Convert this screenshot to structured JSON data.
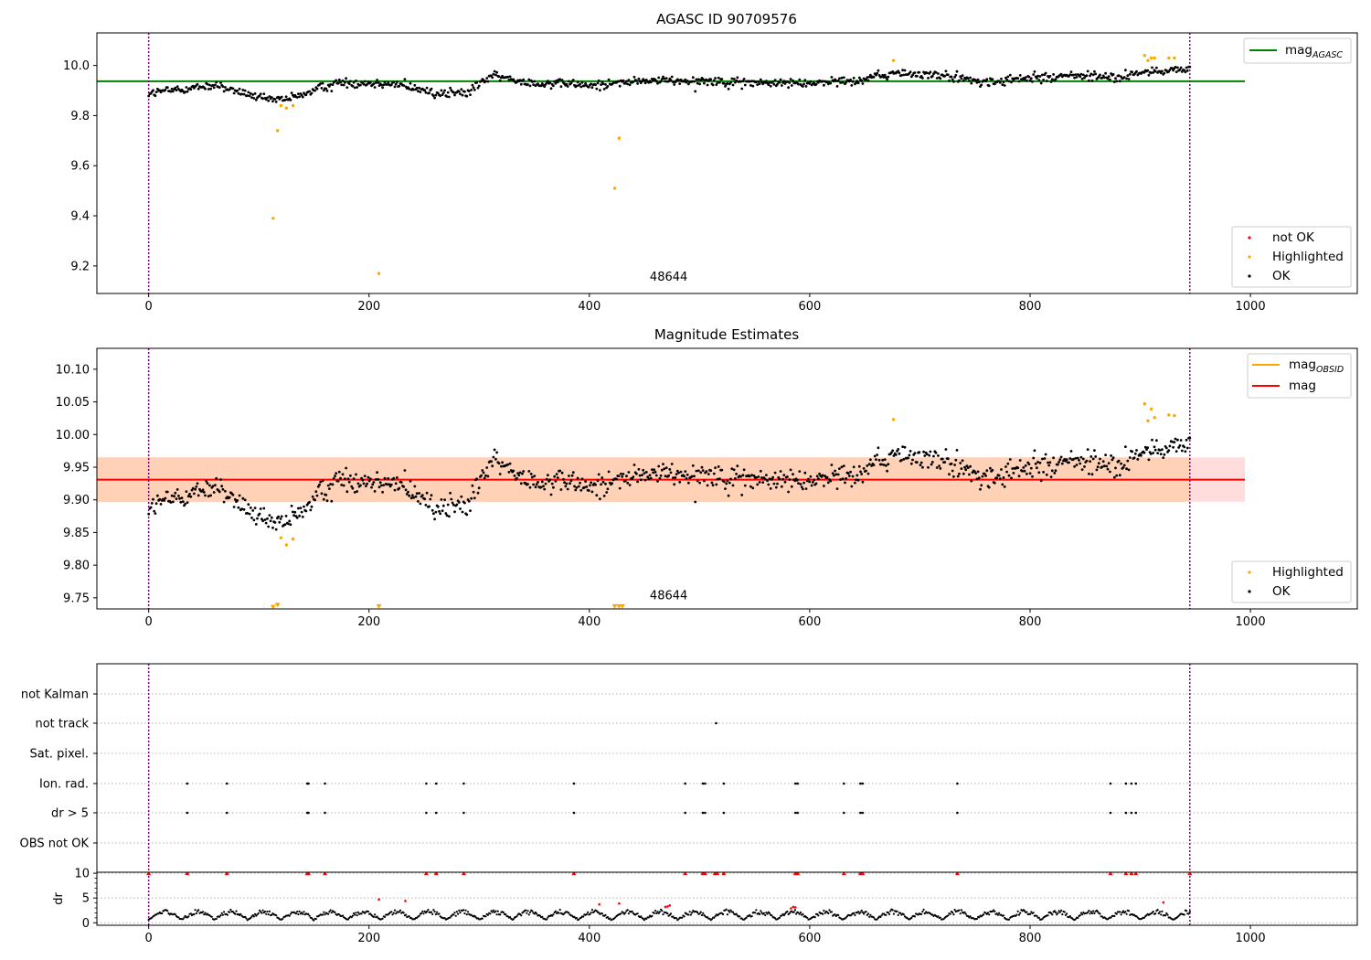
{
  "chart_data": [
    {
      "type": "scatter",
      "title": "AGASC ID 90709576",
      "xlim": [
        -47,
        1097
      ],
      "ylim": [
        9.09,
        10.13
      ],
      "xticks": [
        0,
        200,
        400,
        600,
        800,
        1000
      ],
      "yticks": [
        9.2,
        9.4,
        9.6,
        9.8,
        10.0
      ],
      "ytick_decimals": 1,
      "vlines": [
        0,
        945
      ],
      "vline_color": "#800080",
      "hline": {
        "y": 9.937,
        "x_range": [
          -47,
          995
        ],
        "color": "#008000"
      },
      "obsid_label": {
        "text": "48644",
        "x": 472,
        "y": 9.12
      },
      "legend_top": {
        "position": "top-right",
        "entries": [
          {
            "label": "mag",
            "sub": "AGASC",
            "color": "#008000"
          }
        ]
      },
      "legend_bottom": {
        "position": "bottom-right",
        "entries": [
          {
            "label": "not OK",
            "color": "#ff0000"
          },
          {
            "label": "Highlighted",
            "color": "#ffa500"
          },
          {
            "label": "OK",
            "color": "#000000"
          }
        ]
      },
      "highlighted_points": {
        "x": [
          113,
          117,
          120,
          125,
          131,
          209,
          423,
          427,
          676,
          904,
          907,
          910,
          913,
          926,
          931
        ],
        "y": [
          9.39,
          9.74,
          9.84,
          9.83,
          9.84,
          9.17,
          9.51,
          9.71,
          10.02,
          10.04,
          10.02,
          10.03,
          10.03,
          10.03,
          10.03
        ]
      },
      "ok_series": {
        "n": 940,
        "x_range": [
          0,
          945
        ],
        "trend": {
          "x": [
            0,
            60,
            110,
            130,
            170,
            220,
            260,
            290,
            310,
            350,
            400,
            450,
            500,
            560,
            600,
            640,
            680,
            720,
            760,
            800,
            840,
            880,
            900,
            945
          ],
          "y": [
            9.89,
            9.92,
            9.86,
            9.87,
            9.93,
            9.93,
            9.89,
            9.89,
            9.96,
            9.93,
            9.92,
            9.94,
            9.94,
            9.93,
            9.93,
            9.94,
            9.97,
            9.96,
            9.93,
            9.95,
            9.96,
            9.95,
            9.97,
            9.99
          ]
        },
        "scatter": 0.016
      }
    },
    {
      "type": "scatter",
      "title": "Magnitude Estimates",
      "xlim": [
        -47,
        1097
      ],
      "ylim": [
        9.733,
        10.132
      ],
      "xticks": [
        0,
        200,
        400,
        600,
        800,
        1000
      ],
      "yticks": [
        9.75,
        9.8,
        9.85,
        9.9,
        9.95,
        10.0,
        10.05,
        10.1
      ],
      "ytick_decimals": 2,
      "vlines": [
        0,
        945
      ],
      "vline_color": "#800080",
      "band": {
        "y0": 9.897,
        "y1": 9.965,
        "x_range": [
          -47,
          995
        ],
        "colors": [
          "#ffdddd",
          "#ffd2b8"
        ]
      },
      "hlines": [
        {
          "y": 9.931,
          "x_range": [
            -47,
            995
          ],
          "color": "#ff0000"
        }
      ],
      "obsid_label": {
        "text": "48644",
        "x": 472,
        "y": 9.745
      },
      "legend_top": {
        "position": "top-right",
        "entries": [
          {
            "label": "mag",
            "sub": "OBSID",
            "color": "#ffa500"
          },
          {
            "label": "mag",
            "color": "#ff0000"
          }
        ]
      },
      "legend_bottom": {
        "position": "bottom-right",
        "entries": [
          {
            "label": "Highlighted",
            "color": "#ffa500"
          },
          {
            "label": "OK",
            "color": "#000000"
          }
        ]
      },
      "highlighted_points": {
        "x": [
          120,
          125,
          131,
          676,
          904,
          907,
          910,
          913,
          926,
          931
        ],
        "y": [
          9.842,
          9.831,
          9.84,
          10.023,
          10.047,
          10.021,
          10.039,
          10.026,
          10.03,
          10.029
        ]
      },
      "clipped_points": {
        "x": [
          113,
          117,
          209,
          423,
          427,
          430
        ],
        "y": [
          9.735,
          9.738,
          9.736,
          9.736,
          9.736,
          9.736
        ]
      },
      "ok_series": {
        "n": 940,
        "x_range": [
          0,
          945
        ],
        "trend": {
          "x": [
            0,
            60,
            110,
            130,
            170,
            220,
            260,
            290,
            310,
            350,
            400,
            450,
            500,
            560,
            600,
            640,
            680,
            720,
            760,
            800,
            840,
            880,
            900,
            945
          ],
          "y": [
            9.89,
            9.92,
            9.86,
            9.87,
            9.93,
            9.93,
            9.89,
            9.89,
            9.96,
            9.93,
            9.92,
            9.94,
            9.94,
            9.93,
            9.93,
            9.94,
            9.97,
            9.96,
            9.93,
            9.95,
            9.96,
            9.95,
            9.97,
            9.99
          ]
        },
        "scatter": 0.016
      }
    },
    {
      "type": "scatter",
      "xlim": [
        -47,
        1097
      ],
      "xticks": [
        0,
        200,
        400,
        600,
        800,
        1000
      ],
      "vlines": [
        0,
        945
      ],
      "vline_color": "#800080",
      "flag_rows": [
        "not Kalman",
        "not track",
        "Sat. pixel.",
        "Ion. rad.",
        "dr > 5",
        "OBS not OK"
      ],
      "flag_points": {
        "not Kalman": [],
        "not track": [
          515
        ],
        "Sat. pixel.": [],
        "Ion. rad.": [
          35,
          71,
          144,
          145,
          160,
          252,
          261,
          286,
          386,
          487,
          503,
          505,
          522,
          587,
          589,
          631,
          646,
          648,
          734,
          873,
          887,
          892,
          896
        ],
        "dr > 5": [
          35,
          71,
          144,
          145,
          160,
          252,
          261,
          286,
          386,
          487,
          503,
          505,
          522,
          587,
          589,
          631,
          646,
          648,
          734,
          873,
          887,
          892,
          896
        ],
        "OBS not OK": []
      },
      "dr_panel": {
        "ylabel": "dr",
        "ylim": [
          -0.5,
          10.2
        ],
        "yticks": [
          0,
          5,
          10
        ],
        "clipped_red_x": [
          0,
          35,
          71,
          144,
          145,
          160,
          252,
          261,
          286,
          386,
          487,
          503,
          505,
          514,
          516,
          522,
          587,
          589,
          631,
          646,
          648,
          734,
          873,
          887,
          892,
          896,
          945
        ],
        "red_points": {
          "x": [
            209,
            233,
            409,
            427,
            469,
            471,
            473,
            583,
            585,
            587,
            921
          ],
          "y": [
            4.7,
            4.4,
            3.7,
            3.9,
            3.2,
            3.3,
            3.5,
            2.9,
            3.2,
            3.1,
            4.1
          ]
        },
        "black_series": {
          "n": 940,
          "x_range": [
            0,
            945
          ],
          "cycle_length": 30,
          "amplitude": 1.6,
          "base": 0.6
        }
      }
    }
  ]
}
